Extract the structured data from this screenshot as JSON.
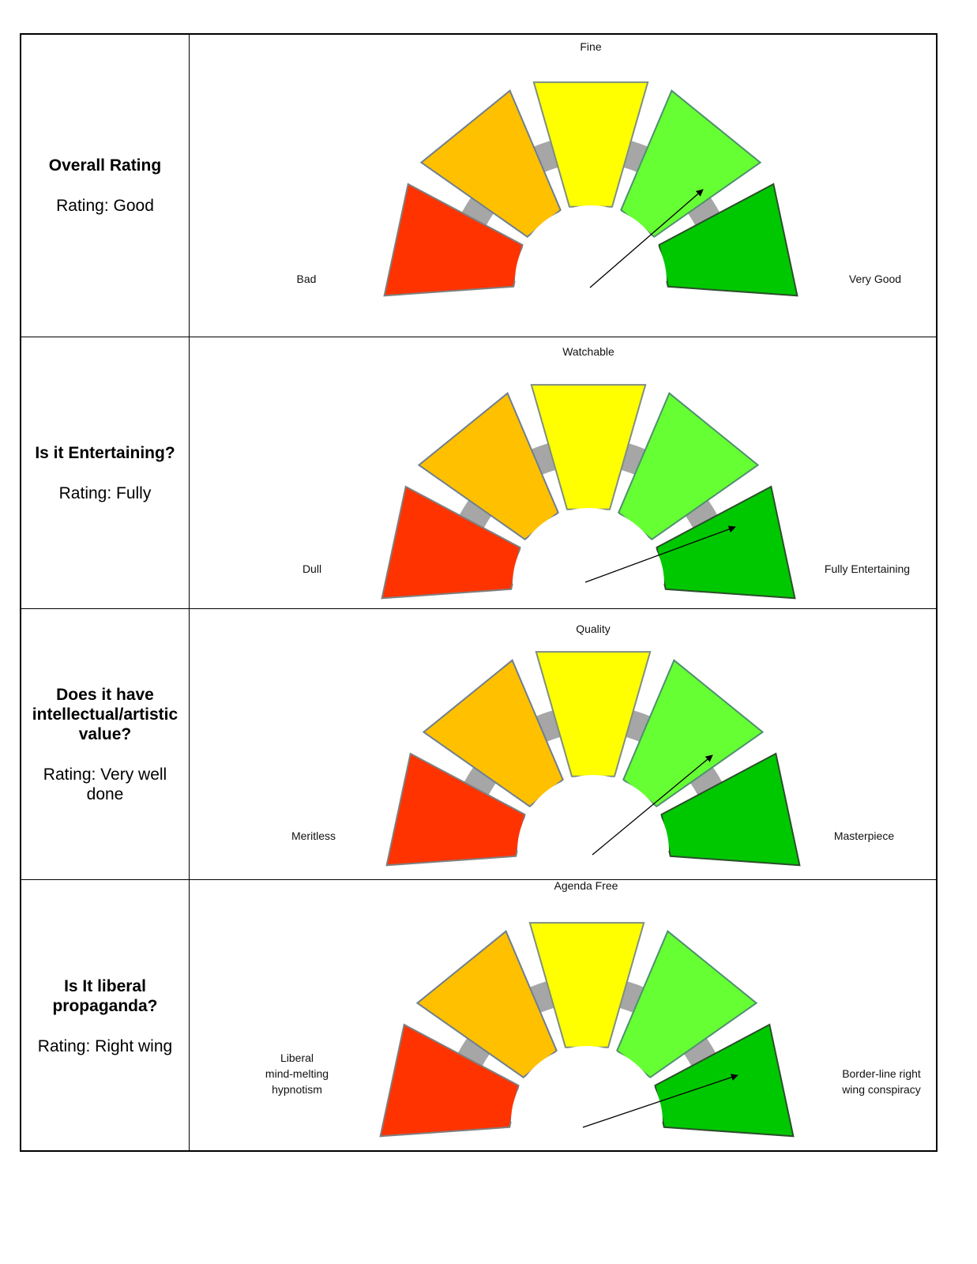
{
  "rows": [
    {
      "question": "Overall Rating",
      "rating": "Rating: Good",
      "gauge": {
        "top_label": "Fine",
        "left_label": [
          "Bad"
        ],
        "right_label": [
          "Very Good"
        ],
        "selected": "good"
      }
    },
    {
      "question": "Is it Entertaining?",
      "rating": "Rating: Fully",
      "gauge": {
        "top_label": "Watchable",
        "left_label": [
          "Dull"
        ],
        "right_label": [
          "Fully Entertaining"
        ],
        "selected": "very-good"
      }
    },
    {
      "question": "Does it have intellectual/artistic value?",
      "rating": "Rating: Very well done",
      "gauge": {
        "top_label": "Quality",
        "left_label": [
          "Meritless"
        ],
        "right_label": [
          "Masterpiece"
        ],
        "selected": "good"
      }
    },
    {
      "question": "Is It liberal propaganda?",
      "rating": "Rating: Right wing",
      "gauge": {
        "top_label": "Agenda Free",
        "left_label": [
          "Liberal",
          "mind-melting",
          "hypnotism"
        ],
        "right_label": [
          "Border-line right",
          "wing conspiracy"
        ],
        "selected": "very-good"
      }
    }
  ],
  "colors": {
    "segment_1": "#ff3300",
    "segment_2": "#ffc000",
    "segment_3": "#ffff00",
    "segment_4": "#66ff33",
    "segment_5": "#00c800",
    "track": "#a6a6a6"
  }
}
